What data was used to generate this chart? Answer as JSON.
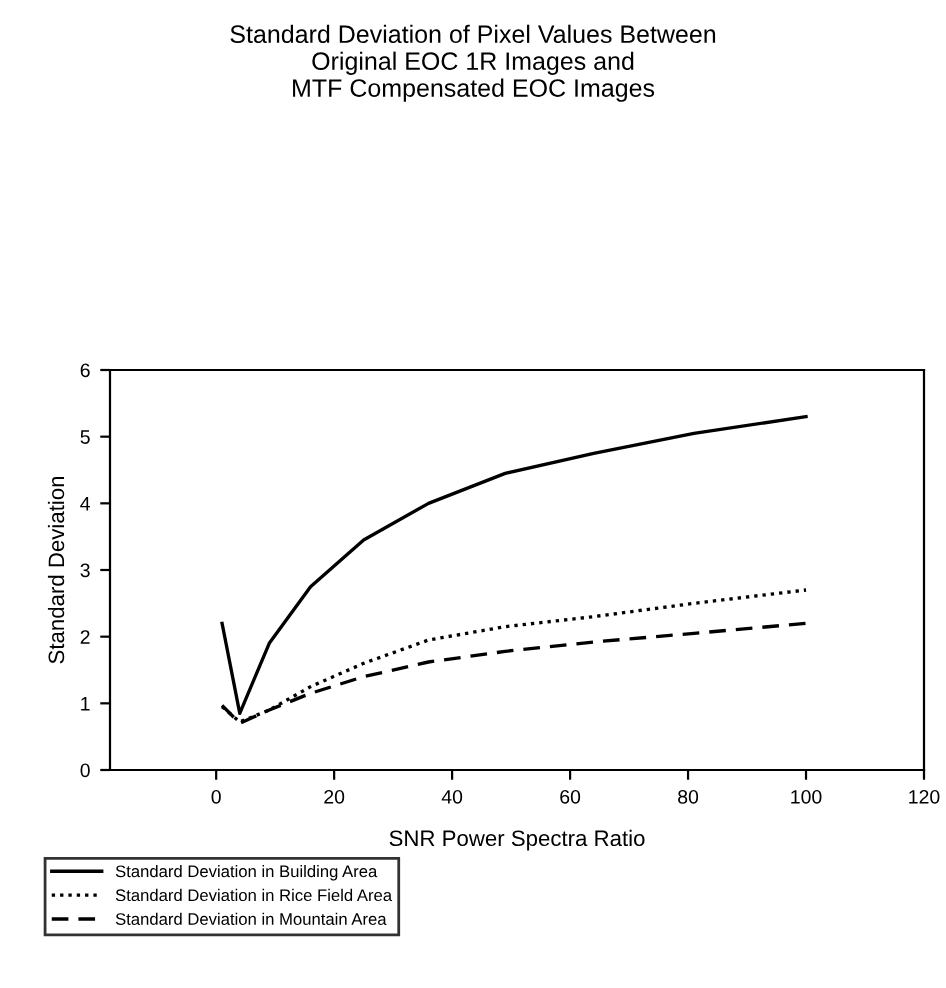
{
  "chart_data": {
    "type": "line",
    "title": "Standard Deviation of Pixel Values Between\nOriginal EOC 1R Images and\nMTF Compensated EOC Images",
    "xlabel": "SNR Power Spectra Ratio",
    "ylabel": "Standard Deviation",
    "xlim": [
      -18,
      120
    ],
    "xticks": [
      0,
      20,
      40,
      60,
      80,
      100,
      120
    ],
    "ylim": [
      0,
      6
    ],
    "yticks": [
      0,
      1,
      2,
      3,
      4,
      5,
      6
    ],
    "grid": false,
    "legend": "bottom",
    "x": [
      1,
      4,
      9,
      16,
      25,
      36,
      49,
      64,
      81,
      100
    ],
    "series": [
      {
        "name": "Standard Deviation in Building Area",
        "color": "#000000",
        "line_style": "solid",
        "values": [
          2.2,
          0.85,
          1.9,
          2.75,
          3.45,
          4.0,
          4.45,
          4.75,
          5.05,
          5.3
        ]
      },
      {
        "name": "Standard Deviation in Rice Field Area",
        "color": "#000000",
        "line_style": "dotted",
        "values": [
          0.95,
          0.72,
          0.9,
          1.25,
          1.6,
          1.95,
          2.15,
          2.3,
          2.5,
          2.7
        ]
      },
      {
        "name": "Standard Deviation in Mountain Area",
        "color": "#000000",
        "line_style": "dashed",
        "values": [
          0.97,
          0.7,
          0.9,
          1.15,
          1.4,
          1.62,
          1.78,
          1.92,
          2.05,
          2.2
        ]
      }
    ]
  }
}
